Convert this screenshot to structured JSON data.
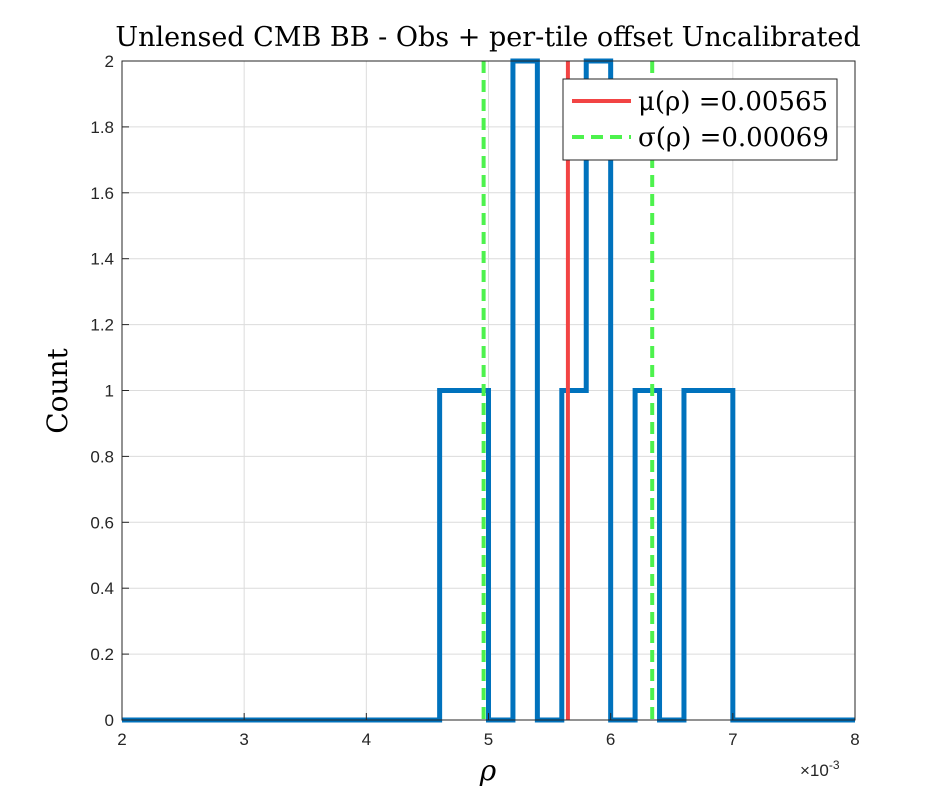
{
  "chart_data": {
    "type": "histogram",
    "title": "Unlensed CMB BB - Obs + per-tile offset Uncalibrated",
    "xlabel": "ρ",
    "ylabel": "Count",
    "x_exponent_label": "×10",
    "x_exponent_power": "-3",
    "xlim": [
      0.002,
      0.008
    ],
    "ylim": [
      0,
      2
    ],
    "x_ticks": [
      0.002,
      0.003,
      0.004,
      0.005,
      0.006,
      0.007,
      0.008
    ],
    "x_tick_labels": [
      "2",
      "3",
      "4",
      "5",
      "6",
      "7",
      "8"
    ],
    "y_ticks": [
      0,
      0.2,
      0.4,
      0.6,
      0.8,
      1,
      1.2,
      1.4,
      1.6,
      1.8,
      2
    ],
    "y_tick_labels": [
      "0",
      "0.2",
      "0.4",
      "0.6",
      "0.8",
      "1",
      "1.2",
      "1.4",
      "1.6",
      "1.8",
      "2"
    ],
    "grid": true,
    "bin_edges": [
      0.002,
      0.0046,
      0.0048,
      0.005,
      0.0052,
      0.0054,
      0.0056,
      0.0058,
      0.006,
      0.0062,
      0.0064,
      0.0066,
      0.0068,
      0.007,
      0.008
    ],
    "counts": [
      0,
      1,
      1,
      0,
      2,
      0,
      1,
      2,
      0,
      1,
      0,
      1,
      1,
      0
    ],
    "histogram_color": "#0072BD",
    "mean": 0.00565,
    "std": 0.00069,
    "mean_line_color": "#F24444",
    "std_line_color": "#4DF24D",
    "legend": {
      "placement": "top-right",
      "entries": [
        {
          "label": "μ(ρ) =0.00565",
          "style": "solid",
          "color": "#F24444"
        },
        {
          "label": "σ(ρ) =0.00069",
          "style": "dashed",
          "color": "#4DF24D"
        }
      ]
    }
  }
}
